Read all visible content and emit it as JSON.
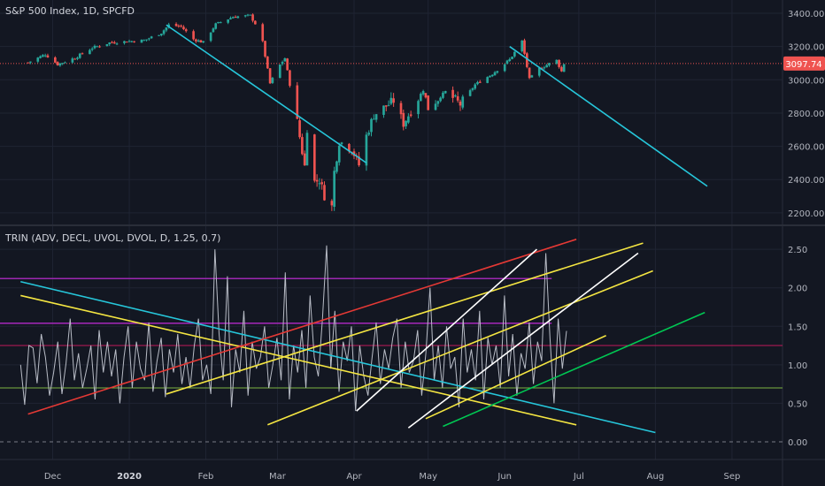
{
  "main_pane": {
    "title": "S&P 500 Index, 1D, SPCFD",
    "last_price_label": "3097.74"
  },
  "trin_pane": {
    "title": "TRIN (ADV, DECL, UVOL, DVOL, D, 1.25, 0.7)"
  },
  "colors": {
    "background": "#131722",
    "grid": "#1f2433",
    "up_candle": "#26a69a",
    "down_candle": "#ef5350",
    "price_line": "#ef5350",
    "trendline_cyan": "#26c6da",
    "trin_line": "#b8bcc6",
    "purple": "#9c27b0",
    "red": "#e53935",
    "yellow": "#f5e642",
    "white": "#ffffff",
    "green": "#00c853",
    "level_upper": "#c2185b",
    "level_lower": "#7cb342"
  },
  "chart_data": [
    {
      "type": "candlestick",
      "title": "S&P 500 Index, 1D, SPCFD",
      "x_ticks": [
        "Dec",
        "2020",
        "Feb",
        "Mar",
        "Apr",
        "May",
        "Jun",
        "Jul",
        "Aug",
        "Sep"
      ],
      "y_ticks": [
        2200.0,
        2400.0,
        2600.0,
        2800.0,
        3000.0,
        3200.0,
        3400.0
      ],
      "ylim": [
        2130,
        3480
      ],
      "last_price": 3097.74,
      "series": [
        {
          "name": "",
          "close_path": [
            [
              "2019-11-21",
              3104
            ],
            [
              "2019-11-28",
              3153
            ],
            [
              "2019-12-03",
              3093
            ],
            [
              "2019-12-10",
              3132
            ],
            [
              "2019-12-17",
              3192
            ],
            [
              "2019-12-24",
              3223
            ],
            [
              "2019-12-31",
              3231
            ],
            [
              "2020-01-07",
              3237
            ],
            [
              "2020-01-14",
              3283
            ],
            [
              "2020-01-17",
              3330
            ],
            [
              "2020-01-22",
              3321
            ],
            [
              "2020-01-27",
              3244
            ],
            [
              "2020-01-31",
              3225
            ],
            [
              "2020-02-05",
              3334
            ],
            [
              "2020-02-12",
              3379
            ],
            [
              "2020-02-19",
              3386
            ],
            [
              "2020-02-21",
              3338
            ],
            [
              "2020-02-24",
              3226
            ],
            [
              "2020-02-27",
              2978
            ],
            [
              "2020-03-02",
              3090
            ],
            [
              "2020-03-04",
              3130
            ],
            [
              "2020-03-06",
              2972
            ],
            [
              "2020-03-09",
              2746
            ],
            [
              "2020-03-12",
              2480
            ],
            [
              "2020-03-13",
              2711
            ],
            [
              "2020-03-16",
              2386
            ],
            [
              "2020-03-18",
              2398
            ],
            [
              "2020-03-20",
              2304
            ],
            [
              "2020-03-23",
              2237
            ],
            [
              "2020-03-24",
              2447
            ],
            [
              "2020-03-26",
              2630
            ],
            [
              "2020-03-31",
              2585
            ],
            [
              "2020-04-03",
              2488
            ],
            [
              "2020-04-06",
              2663
            ],
            [
              "2020-04-09",
              2789
            ],
            [
              "2020-04-17",
              2874
            ],
            [
              "2020-04-21",
              2737
            ],
            [
              "2020-04-29",
              2939
            ],
            [
              "2020-05-01",
              2830
            ],
            [
              "2020-05-08",
              2929
            ],
            [
              "2020-05-14",
              2852
            ],
            [
              "2020-05-20",
              2971
            ],
            [
              "2020-05-27",
              3036
            ],
            [
              "2020-06-03",
              3122
            ],
            [
              "2020-06-08",
              3232
            ],
            [
              "2020-06-11",
              3002
            ],
            [
              "2020-06-15",
              3066
            ],
            [
              "2020-06-19",
              3097
            ],
            [
              "2020-06-22",
              3117
            ],
            [
              "2020-06-24",
              3050
            ],
            [
              "2020-06-25",
              3098
            ]
          ]
        }
      ],
      "trendlines": [
        {
          "color": "cyan",
          "from": [
            "2020-01-16",
            3330
          ],
          "to": [
            "2020-04-06",
            2500
          ]
        },
        {
          "color": "cyan",
          "from": [
            "2020-06-03",
            3200
          ],
          "to": [
            "2020-08-22",
            2360
          ]
        }
      ]
    },
    {
      "type": "line",
      "title": "TRIN (ADV, DECL, UVOL, DVOL, D, 1.25, 0.7)",
      "y_ticks": [
        0.0,
        0.5,
        1.0,
        1.5,
        2.0,
        2.5
      ],
      "ylim": [
        -0.23,
        2.8
      ],
      "levels": [
        {
          "value": 1.25,
          "color": "level_upper"
        },
        {
          "value": 0.7,
          "color": "level_lower"
        },
        {
          "value": 0.0,
          "color": "dashed"
        },
        {
          "value": 2.12,
          "color": "purple"
        },
        {
          "value": 1.54,
          "color": "purple"
        }
      ],
      "series": [
        {
          "name": "",
          "color": "trin_line",
          "x_start": "2019-11-18",
          "x_end": "2020-06-26",
          "values": [
            1.0,
            0.48,
            1.25,
            1.22,
            0.76,
            1.4,
            1.1,
            0.6,
            0.9,
            1.3,
            0.62,
            1.02,
            1.6,
            0.8,
            1.15,
            0.7,
            0.95,
            1.25,
            0.55,
            1.45,
            0.9,
            1.3,
            0.85,
            1.2,
            0.5,
            1.1,
            1.5,
            0.7,
            1.3,
            0.95,
            0.8,
            1.55,
            0.65,
            1.05,
            1.35,
            0.58,
            1.2,
            0.9,
            1.4,
            0.75,
            1.1,
            0.7,
            1.25,
            1.6,
            0.8,
            1.0,
            0.62,
            2.5,
            1.4,
            0.8,
            2.15,
            0.45,
            1.2,
            0.9,
            1.7,
            0.6,
            1.3,
            0.95,
            1.1,
            1.5,
            0.7,
            1.0,
            1.35,
            0.8,
            2.2,
            0.55,
            1.25,
            0.9,
            1.45,
            0.7,
            1.9,
            1.1,
            0.85,
            1.6,
            2.55,
            0.95,
            1.7,
            0.65,
            1.3,
            1.05,
            1.5,
            0.4,
            1.25,
            0.85,
            0.6,
            1.1,
            1.55,
            0.75,
            1.2,
            0.95,
            1.35,
            1.6,
            0.7,
            1.3,
            0.9,
            1.05,
            1.45,
            0.6,
            1.15,
            2.0,
            0.8,
            1.25,
            0.7,
            1.5,
            0.95,
            1.1,
            0.45,
            1.6,
            0.9,
            1.2,
            0.8,
            1.7,
            0.55,
            1.35,
            1.0,
            1.25,
            0.7,
            1.9,
            0.85,
            1.4,
            0.6,
            1.15,
            0.95,
            1.55,
            0.75,
            1.3,
            1.05,
            2.45,
            1.35,
            0.5,
            1.6,
            0.95,
            1.44
          ]
        }
      ],
      "trendlines": [
        {
          "color": "cyan",
          "from": [
            "2019-11-18",
            2.08
          ],
          "to": [
            "2020-08-01",
            0.12
          ]
        },
        {
          "color": "yellow",
          "from": [
            "2019-11-18",
            1.9
          ],
          "to": [
            "2020-06-30",
            0.22
          ]
        },
        {
          "color": "red",
          "from": [
            "2019-11-21",
            0.36
          ],
          "to": [
            "2020-06-30",
            2.63
          ]
        },
        {
          "color": "yellow",
          "from": [
            "2020-01-16",
            0.62
          ],
          "to": [
            "2020-07-27",
            2.58
          ]
        },
        {
          "color": "yellow",
          "from": [
            "2020-02-26",
            0.22
          ],
          "to": [
            "2020-07-31",
            2.22
          ]
        },
        {
          "color": "white",
          "from": [
            "2020-04-02",
            0.4
          ],
          "to": [
            "2020-06-14",
            2.5
          ]
        },
        {
          "color": "white",
          "from": [
            "2020-04-23",
            0.18
          ],
          "to": [
            "2020-07-25",
            2.45
          ]
        },
        {
          "color": "yellow",
          "from": [
            "2020-04-30",
            0.3
          ],
          "to": [
            "2020-07-12",
            1.38
          ]
        },
        {
          "color": "green",
          "from": [
            "2020-05-07",
            0.2
          ],
          "to": [
            "2020-08-21",
            1.68
          ]
        }
      ]
    }
  ]
}
